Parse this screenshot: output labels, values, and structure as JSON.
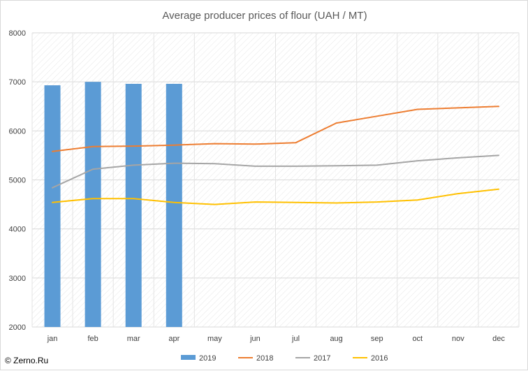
{
  "copyright": "© Zerno.Ru",
  "chart_data": {
    "type": "bar+line",
    "title": "Average producer prices of flour (UAH / MT)",
    "xlabel": "",
    "ylabel": "",
    "categories": [
      "jan",
      "feb",
      "mar",
      "apr",
      "may",
      "jun",
      "jul",
      "aug",
      "sep",
      "oct",
      "nov",
      "dec"
    ],
    "ylim": [
      2000,
      8000
    ],
    "yticks": [
      2000,
      3000,
      4000,
      5000,
      6000,
      7000,
      8000
    ],
    "grid": true,
    "legend_position": "bottom",
    "series": [
      {
        "name": "2019",
        "type": "bar",
        "color": "#5B9BD5",
        "values": [
          6930,
          7000,
          6960,
          6960,
          null,
          null,
          null,
          null,
          null,
          null,
          null,
          null
        ]
      },
      {
        "name": "2018",
        "type": "line",
        "color": "#ED7D31",
        "values": [
          5580,
          5680,
          5690,
          5710,
          5740,
          5730,
          5760,
          6160,
          6300,
          6440,
          6470,
          6500
        ]
      },
      {
        "name": "2017",
        "type": "line",
        "color": "#A5A5A5",
        "values": [
          4840,
          5220,
          5300,
          5340,
          5330,
          5280,
          5280,
          5290,
          5300,
          5390,
          5450,
          5500
        ]
      },
      {
        "name": "2016",
        "type": "line",
        "color": "#FFC000",
        "values": [
          4540,
          4620,
          4620,
          4540,
          4500,
          4550,
          4540,
          4530,
          4550,
          4590,
          4720,
          4810
        ]
      }
    ]
  }
}
